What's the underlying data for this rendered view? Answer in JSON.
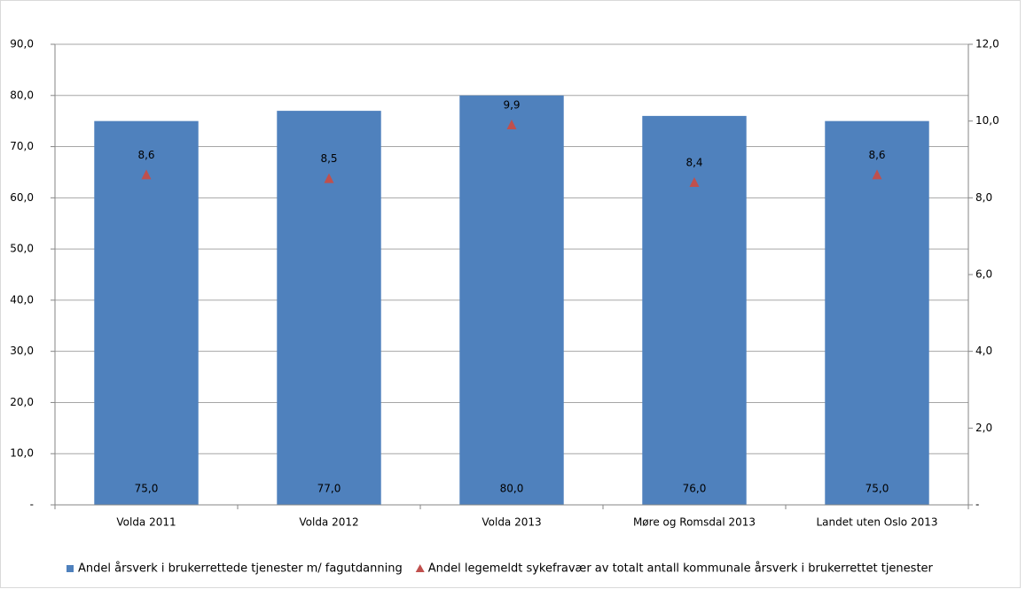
{
  "chart_data": {
    "type": "bar",
    "categories": [
      "Volda 2011",
      "Volda 2012",
      "Volda 2013",
      "Møre og Romsdal 2013",
      "Landet uten Oslo 2013"
    ],
    "series": [
      {
        "name": "Andel årsverk i brukerrettede tjenester m/ fagutdanning",
        "type": "bar",
        "color": "#4f81bd",
        "values": [
          75.0,
          77.0,
          80.0,
          76.0,
          75.0
        ],
        "value_labels": [
          "75,0",
          "77,0",
          "80,0",
          "76,0",
          "75,0"
        ]
      },
      {
        "name": "Andel legemeldt sykefravær av totalt antall kommunale årsverk i brukerrettet tjenester",
        "type": "scatter",
        "marker": "triangle",
        "axis": "y2",
        "color": "#c0504d",
        "values": [
          8.6,
          8.5,
          9.9,
          8.4,
          8.6
        ],
        "value_labels": [
          "8,6",
          "8,5",
          "9,9",
          "8,4",
          "8,6"
        ]
      }
    ],
    "ylim": [
      0,
      90
    ],
    "yticks": [
      {
        "value": 0,
        "label": "-"
      },
      {
        "value": 10,
        "label": "10,0"
      },
      {
        "value": 20,
        "label": "20,0"
      },
      {
        "value": 30,
        "label": "30,0"
      },
      {
        "value": 40,
        "label": "40,0"
      },
      {
        "value": 50,
        "label": "50,0"
      },
      {
        "value": 60,
        "label": "60,0"
      },
      {
        "value": 70,
        "label": "70,0"
      },
      {
        "value": 80,
        "label": "80,0"
      },
      {
        "value": 90,
        "label": "90,0"
      }
    ],
    "y2lim": [
      0,
      12
    ],
    "y2ticks": [
      {
        "value": 0,
        "label": "-"
      },
      {
        "value": 2,
        "label": "2,0"
      },
      {
        "value": 4,
        "label": "4,0"
      },
      {
        "value": 6,
        "label": "6,0"
      },
      {
        "value": 8,
        "label": "8,0"
      },
      {
        "value": 10,
        "label": "10,0"
      },
      {
        "value": 12,
        "label": "12,0"
      }
    ],
    "grid": true,
    "legend": "bottom"
  }
}
